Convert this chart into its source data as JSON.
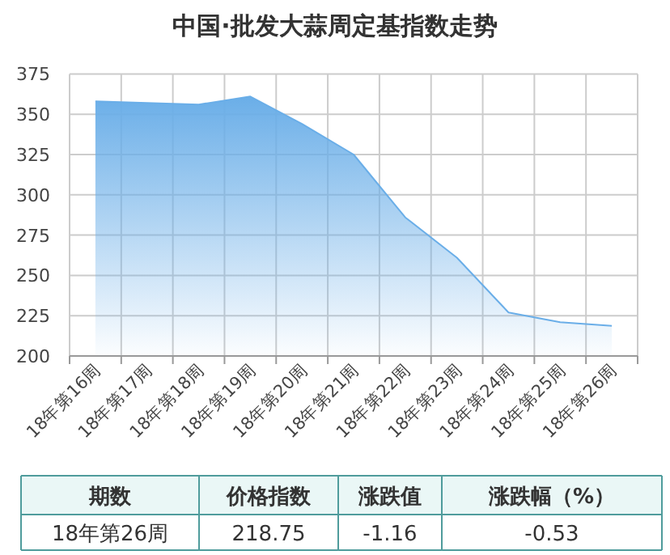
{
  "chart_data": {
    "type": "area",
    "title": "中国·批发大蒜周定基指数走势",
    "categories": [
      "18年第16周",
      "18年第17周",
      "18年第18周",
      "18年第19周",
      "18年第20周",
      "18年第21周",
      "18年第22周",
      "18年第23周",
      "18年第24周",
      "18年第25周",
      "18年第26周"
    ],
    "series": [
      {
        "color": "#6aaee8",
        "values": [
          358,
          357,
          356,
          361,
          344,
          325,
          286,
          261,
          227,
          221,
          218.75
        ]
      }
    ],
    "ylim": [
      200,
      375
    ],
    "yticks": [
      200,
      225,
      250,
      275,
      300,
      325,
      350,
      375
    ],
    "grid": true,
    "annotations": [
      "期数",
      "价格指数",
      "涨跌值",
      "涨跌幅（%）",
      "18年第26周",
      "218.75",
      "-1.16",
      "-0.53"
    ]
  }
}
